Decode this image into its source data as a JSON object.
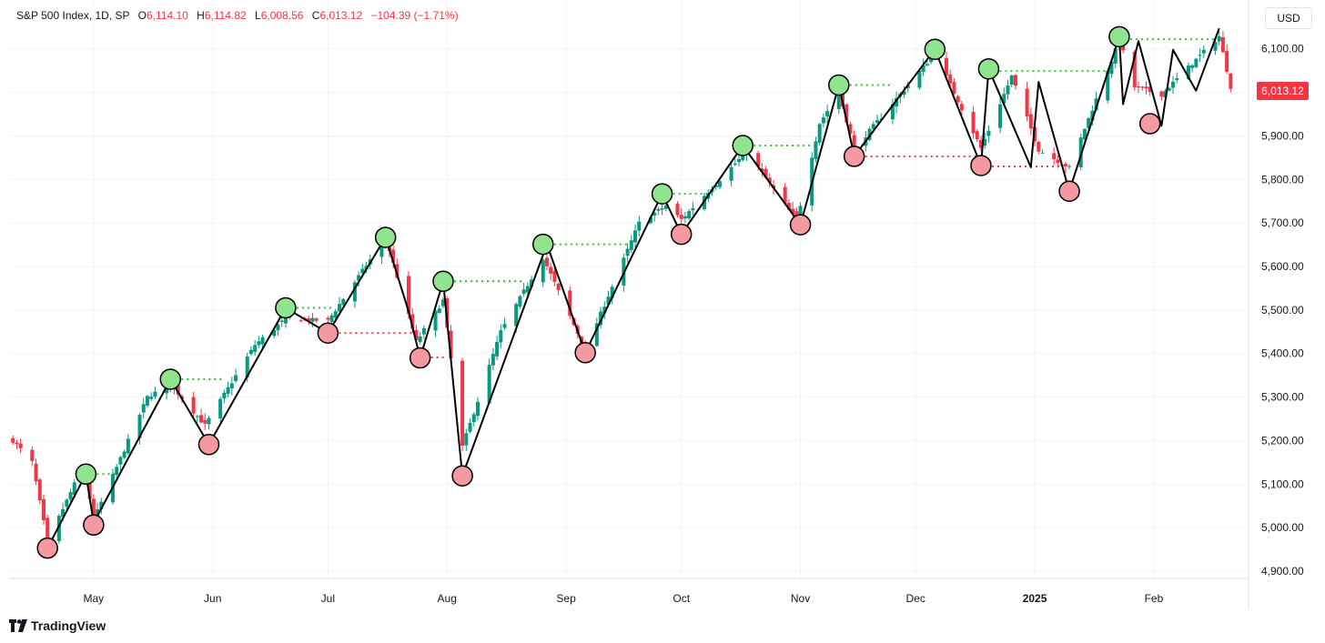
{
  "legend": {
    "symbol": "S&P 500 Index, 1D, SP",
    "open_label": "O",
    "open": "6,114.10",
    "high_label": "H",
    "high": "6,114.82",
    "low_label": "L",
    "low": "6,008.56",
    "close_label": "C",
    "close": "6,013.12",
    "change": "−104.39 (−1.71%)"
  },
  "currency": "USD",
  "last_price": "6,013.12",
  "brand": "TradingView",
  "colors": {
    "up": "#089981",
    "down": "#f23645",
    "swing_high": "#90e38f",
    "swing_low": "#f4999f",
    "zigzag": "#000000"
  },
  "chart_data": {
    "type": "candlestick",
    "y_axis": {
      "ticks": [
        4900,
        5000,
        5100,
        5200,
        5300,
        5400,
        5500,
        5600,
        5700,
        5800,
        5900,
        6000,
        6100
      ],
      "tick_labels": [
        "4,900.00",
        "5,000.00",
        "5,100.00",
        "5,200.00",
        "5,300.00",
        "5,400.00",
        "5,500.00",
        "5,600.00",
        "5,700.00",
        "5,800.00",
        "5,900.00",
        "6,000.00",
        "6,100.00"
      ],
      "range": [
        4875,
        6160
      ]
    },
    "x_axis": {
      "range": [
        "2024-04-09",
        "2025-02-24"
      ],
      "ticks": [
        {
          "date": "2024-05-01",
          "label": "May",
          "bold": false
        },
        {
          "date": "2024-06-01",
          "label": "Jun",
          "bold": false
        },
        {
          "date": "2024-07-01",
          "label": "Jul",
          "bold": false
        },
        {
          "date": "2024-08-01",
          "label": "Aug",
          "bold": false
        },
        {
          "date": "2024-09-01",
          "label": "Sep",
          "bold": false
        },
        {
          "date": "2024-10-01",
          "label": "Oct",
          "bold": false
        },
        {
          "date": "2024-11-01",
          "label": "Nov",
          "bold": false
        },
        {
          "date": "2024-12-01",
          "label": "Dec",
          "bold": false
        },
        {
          "date": "2025-01-01",
          "label": "2025",
          "bold": true
        },
        {
          "date": "2025-02-01",
          "label": "Feb",
          "bold": false
        }
      ]
    },
    "price_path": [
      [
        "2024-04-10",
        5200
      ],
      [
        "2024-04-15",
        5150
      ],
      [
        "2024-04-19",
        4967
      ],
      [
        "2024-04-26",
        5100
      ],
      [
        "2024-04-29",
        5116
      ],
      [
        "2024-05-01",
        5018
      ],
      [
        "2024-05-15",
        5300
      ],
      [
        "2024-05-21",
        5330
      ],
      [
        "2024-05-30",
        5235
      ],
      [
        "2024-06-12",
        5420
      ],
      [
        "2024-06-20",
        5480
      ],
      [
        "2024-07-01",
        5475
      ],
      [
        "2024-07-16",
        5667
      ],
      [
        "2024-07-24",
        5427
      ],
      [
        "2024-07-31",
        5522
      ],
      [
        "2024-08-05",
        5186
      ],
      [
        "2024-08-15",
        5450
      ],
      [
        "2024-08-26",
        5620
      ],
      [
        "2024-09-06",
        5408
      ],
      [
        "2024-09-20",
        5700
      ],
      [
        "2024-09-27",
        5740
      ],
      [
        "2024-10-01",
        5708
      ],
      [
        "2024-10-18",
        5864
      ],
      [
        "2024-10-31",
        5705
      ],
      [
        "2024-11-06",
        5929
      ],
      [
        "2024-11-11",
        6001
      ],
      [
        "2024-11-15",
        5870
      ],
      [
        "2024-12-06",
        6090
      ],
      [
        "2024-12-18",
        5872
      ],
      [
        "2024-12-26",
        6037
      ],
      [
        "2025-01-02",
        5868
      ],
      [
        "2025-01-10",
        5827
      ],
      [
        "2025-01-23",
        6119
      ],
      [
        "2025-01-27",
        6012
      ],
      [
        "2025-02-03",
        5995
      ],
      [
        "2025-02-18",
        6129
      ],
      [
        "2025-02-21",
        6013
      ]
    ],
    "zigzag": [
      [
        "2024-04-19",
        4953
      ],
      [
        "2024-04-29",
        5123
      ],
      [
        "2024-05-01",
        5011
      ],
      [
        "2024-05-21",
        5341
      ],
      [
        "2024-05-31",
        5191
      ],
      [
        "2024-06-20",
        5505
      ],
      [
        "2024-07-01",
        5447
      ],
      [
        "2024-07-16",
        5667
      ],
      [
        "2024-07-22",
        5497
      ],
      [
        "2024-07-25",
        5390
      ],
      [
        "2024-07-31",
        5566
      ],
      [
        "2024-08-05",
        5119
      ],
      [
        "2024-08-27",
        5651
      ],
      [
        "2024-09-06",
        5402
      ],
      [
        "2024-09-26",
        5767
      ],
      [
        "2024-10-01",
        5674
      ],
      [
        "2024-10-17",
        5878
      ],
      [
        "2024-11-01",
        5696
      ],
      [
        "2024-11-11",
        6017
      ],
      [
        "2024-11-15",
        5853
      ],
      [
        "2024-12-06",
        6099
      ],
      [
        "2024-12-18",
        5832
      ],
      [
        "2024-12-20",
        6054
      ],
      [
        "2024-12-31",
        5828
      ],
      [
        "2025-01-02",
        6024
      ],
      [
        "2025-01-10",
        5773
      ],
      [
        "2025-01-23",
        6128
      ],
      [
        "2025-01-24",
        5973
      ],
      [
        "2025-01-28",
        6118
      ],
      [
        "2025-02-03",
        5923
      ],
      [
        "2025-02-06",
        6098
      ],
      [
        "2025-02-12",
        6004
      ],
      [
        "2025-02-18",
        6147
      ]
    ],
    "swing_highs": [
      [
        "2024-04-29",
        5123
      ],
      [
        "2024-05-21",
        5341
      ],
      [
        "2024-06-20",
        5505
      ],
      [
        "2024-07-16",
        5667
      ],
      [
        "2024-07-31",
        5566
      ],
      [
        "2024-08-26",
        5651
      ],
      [
        "2024-09-26",
        5767
      ],
      [
        "2024-10-17",
        5878
      ],
      [
        "2024-11-11",
        6017
      ],
      [
        "2024-12-06",
        6099
      ],
      [
        "2024-12-20",
        6054
      ],
      [
        "2025-01-23",
        6128
      ]
    ],
    "swing_lows": [
      [
        "2024-04-19",
        4953
      ],
      [
        "2024-05-01",
        5006
      ],
      [
        "2024-05-31",
        5191
      ],
      [
        "2024-07-01",
        5447
      ],
      [
        "2024-07-25",
        5390
      ],
      [
        "2024-08-05",
        5119
      ],
      [
        "2024-09-06",
        5402
      ],
      [
        "2024-10-01",
        5674
      ],
      [
        "2024-11-01",
        5696
      ],
      [
        "2024-11-15",
        5853
      ],
      [
        "2024-12-18",
        5832
      ],
      [
        "2025-01-10",
        5773
      ],
      [
        "2025-01-31",
        5928
      ]
    ],
    "resistance_levels": [
      {
        "from": "2024-04-29",
        "to": "2024-05-07",
        "value": 5123
      },
      {
        "from": "2024-05-21",
        "to": "2024-06-04",
        "value": 5341
      },
      {
        "from": "2024-06-20",
        "to": "2024-07-02",
        "value": 5505
      },
      {
        "from": "2024-07-31",
        "to": "2024-08-21",
        "value": 5566
      },
      {
        "from": "2024-08-26",
        "to": "2024-09-17",
        "value": 5651
      },
      {
        "from": "2024-09-26",
        "to": "2024-10-09",
        "value": 5767
      },
      {
        "from": "2024-10-17",
        "to": "2024-11-05",
        "value": 5878
      },
      {
        "from": "2024-11-11",
        "to": "2024-11-25",
        "value": 6017
      },
      {
        "from": "2024-12-20",
        "to": "2025-01-21",
        "value": 6049
      },
      {
        "from": "2025-01-23",
        "to": "2025-02-17",
        "value": 6122
      }
    ],
    "support_levels": [
      {
        "from": "2024-07-01",
        "to": "2024-07-24",
        "value": 5447
      },
      {
        "from": "2024-07-25",
        "to": "2024-08-01",
        "value": 5391
      },
      {
        "from": "2024-11-15",
        "to": "2024-12-17",
        "value": 5853
      },
      {
        "from": "2024-12-18",
        "to": "2025-01-08",
        "value": 5830
      }
    ]
  }
}
